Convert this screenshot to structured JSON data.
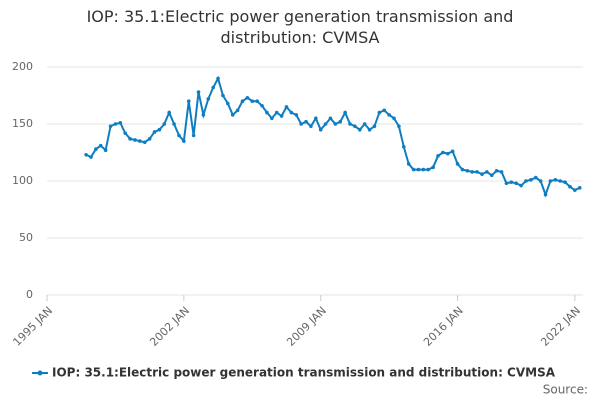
{
  "chart_data": {
    "type": "line",
    "title": "IOP: 35.1:Electric power generation transmission and distribution: CVMSA",
    "source": "Source:",
    "xlim": [
      "1995 JAN",
      "2022 JUN"
    ],
    "xticks": [
      "1995 JAN",
      "2002 JAN",
      "2009 JAN",
      "2016 JAN",
      "2022 JAN"
    ],
    "ylim": [
      0,
      200
    ],
    "yticks": [
      0,
      50,
      100,
      150,
      200
    ],
    "grid": true,
    "legend": "bottom",
    "x": [
      "1997 JAN",
      "1997 APR",
      "1997 JUL",
      "1997 OCT",
      "1998 JAN",
      "1998 APR",
      "1998 JUL",
      "1998 OCT",
      "1999 JAN",
      "1999 APR",
      "1999 JUL",
      "1999 OCT",
      "2000 JAN",
      "2000 APR",
      "2000 JUL",
      "2000 OCT",
      "2001 JAN",
      "2001 APR",
      "2001 JUL",
      "2001 OCT",
      "2002 JAN",
      "2002 APR",
      "2002 JUL",
      "2002 OCT",
      "2003 JAN",
      "2003 APR",
      "2003 JUL",
      "2003 OCT",
      "2004 JAN",
      "2004 APR",
      "2004 JUL",
      "2004 OCT",
      "2005 JAN",
      "2005 APR",
      "2005 JUL",
      "2005 OCT",
      "2006 JAN",
      "2006 APR",
      "2006 JUL",
      "2006 OCT",
      "2007 JAN",
      "2007 APR",
      "2007 JUL",
      "2007 OCT",
      "2008 JAN",
      "2008 APR",
      "2008 JUL",
      "2008 OCT",
      "2009 JAN",
      "2009 APR",
      "2009 JUL",
      "2009 OCT",
      "2010 JAN",
      "2010 APR",
      "2010 JUL",
      "2010 OCT",
      "2011 JAN",
      "2011 APR",
      "2011 JUL",
      "2011 OCT",
      "2012 JAN",
      "2012 APR",
      "2012 JUL",
      "2012 OCT",
      "2013 JAN",
      "2013 APR",
      "2013 JUL",
      "2013 OCT",
      "2014 JAN",
      "2014 APR",
      "2014 JUL",
      "2014 OCT",
      "2015 JAN",
      "2015 APR",
      "2015 JUL",
      "2015 OCT",
      "2016 JAN",
      "2016 APR",
      "2016 JUL",
      "2016 OCT",
      "2017 JAN",
      "2017 APR",
      "2017 JUL",
      "2017 OCT",
      "2018 JAN",
      "2018 APR",
      "2018 JUL",
      "2018 OCT",
      "2019 JAN",
      "2019 APR",
      "2019 JUL",
      "2019 OCT",
      "2020 JAN",
      "2020 APR",
      "2020 JUL",
      "2020 OCT",
      "2021 JAN",
      "2021 APR",
      "2021 JUL",
      "2021 OCT",
      "2022 JAN",
      "2022 APR"
    ],
    "series": [
      {
        "name": "IOP: 35.1:Electric power generation transmission and distribution: CVMSA",
        "color": "#0f7dc2",
        "values": [
          123,
          121,
          128,
          131,
          127,
          148,
          150,
          151,
          142,
          137,
          136,
          135,
          134,
          137,
          143,
          145,
          150,
          160,
          150,
          140,
          135,
          170,
          140,
          178,
          158,
          172,
          182,
          190,
          175,
          168,
          158,
          162,
          170,
          173,
          170,
          170,
          166,
          160,
          155,
          160,
          157,
          165,
          160,
          158,
          150,
          152,
          148,
          155,
          145,
          150,
          155,
          150,
          152,
          160,
          150,
          148,
          145,
          150,
          145,
          148,
          160,
          162,
          158,
          155,
          148,
          130,
          115,
          110,
          110,
          110,
          110,
          112,
          122,
          125,
          124,
          126,
          115,
          110,
          109,
          108,
          108,
          106,
          108,
          105,
          109,
          108,
          98,
          99,
          98,
          96,
          100,
          101,
          103,
          100,
          88,
          100,
          101,
          100,
          99,
          95,
          92,
          94
        ]
      }
    ]
  }
}
